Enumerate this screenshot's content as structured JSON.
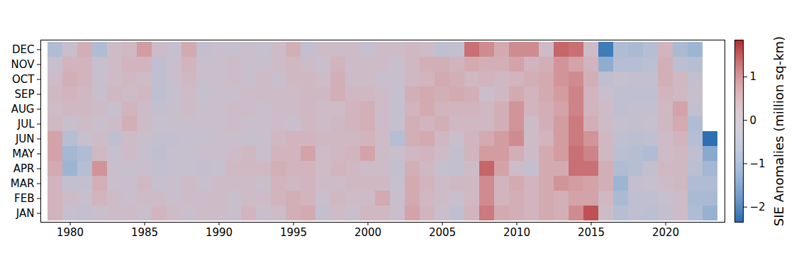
{
  "chart_data": {
    "type": "heatmap",
    "x": [
      1979,
      1980,
      1981,
      1982,
      1983,
      1984,
      1985,
      1986,
      1987,
      1988,
      1989,
      1990,
      1991,
      1992,
      1993,
      1994,
      1995,
      1996,
      1997,
      1998,
      1999,
      2000,
      2001,
      2002,
      2003,
      2004,
      2005,
      2006,
      2007,
      2008,
      2009,
      2010,
      2011,
      2012,
      2013,
      2014,
      2015,
      2016,
      2017,
      2018,
      2019,
      2020,
      2021,
      2022,
      2023
    ],
    "categories": [
      "JAN",
      "FEB",
      "MAR",
      "APR",
      "MAY",
      "JUN",
      "JUL",
      "AUG",
      "SEP",
      "OCT",
      "NOV",
      "DEC"
    ],
    "xticks": [
      1980,
      1985,
      1990,
      1995,
      2000,
      2005,
      2010,
      2015,
      2020
    ],
    "values": [
      [
        0.3,
        0.3,
        0.3,
        0.5,
        0.6,
        0.6,
        0.2,
        0.1,
        0.2,
        0.1,
        -0.1,
        -0.6
      ],
      [
        -0.1,
        0.1,
        -0.2,
        -0.9,
        -0.8,
        -0.5,
        0.0,
        0.2,
        0.3,
        0.4,
        0.3,
        0.0
      ],
      [
        -0.2,
        0.0,
        -0.2,
        -0.5,
        -0.6,
        -0.1,
        0.1,
        0.2,
        0.2,
        0.3,
        0.3,
        0.4
      ],
      [
        0.0,
        0.3,
        0.4,
        0.8,
        0.2,
        0.1,
        0.0,
        0.1,
        0.0,
        0.0,
        -0.1,
        -0.6
      ],
      [
        0.1,
        0.1,
        0.0,
        0.0,
        -0.1,
        -0.3,
        0.1,
        -0.1,
        0.2,
        0.1,
        0.1,
        0.1
      ],
      [
        0.1,
        0.0,
        0.0,
        -0.1,
        0.1,
        0.1,
        0.4,
        0.3,
        0.1,
        0.2,
        0.3,
        0.2
      ],
      [
        0.0,
        0.1,
        0.2,
        0.0,
        -0.1,
        0.0,
        0.1,
        0.1,
        0.2,
        0.1,
        0.3,
        0.7
      ],
      [
        0.3,
        0.1,
        -0.1,
        -0.2,
        -0.3,
        -0.2,
        -0.1,
        -0.2,
        -0.3,
        -0.3,
        -0.3,
        0.1
      ],
      [
        0.1,
        0.0,
        0.0,
        -0.1,
        -0.1,
        -0.2,
        0.0,
        0.0,
        -0.1,
        0.0,
        0.0,
        -0.1
      ],
      [
        0.0,
        0.1,
        0.1,
        -0.1,
        -0.1,
        -0.1,
        0.0,
        0.1,
        0.1,
        0.2,
        0.3,
        0.5
      ],
      [
        0.1,
        0.1,
        0.0,
        -0.2,
        0.0,
        -0.1,
        0.0,
        0.0,
        -0.1,
        0.0,
        0.0,
        -0.2
      ],
      [
        0.1,
        0.1,
        0.1,
        -0.1,
        0.0,
        0.0,
        0.0,
        0.0,
        0.0,
        0.0,
        0.0,
        0.0
      ],
      [
        0.0,
        0.0,
        0.1,
        0.2,
        0.1,
        0.0,
        0.1,
        0.1,
        0.0,
        0.1,
        0.1,
        -0.1
      ],
      [
        0.3,
        0.1,
        0.1,
        0.2,
        0.2,
        -0.1,
        0.0,
        0.1,
        0.1,
        0.0,
        0.0,
        0.0
      ],
      [
        0.0,
        0.1,
        0.0,
        0.2,
        0.0,
        0.0,
        0.0,
        0.0,
        0.1,
        0.1,
        0.0,
        -0.1
      ],
      [
        0.1,
        0.3,
        0.3,
        0.4,
        0.3,
        0.2,
        0.1,
        0.1,
        0.1,
        0.0,
        0.1,
        0.1
      ],
      [
        0.4,
        0.4,
        0.2,
        0.3,
        0.3,
        0.3,
        0.0,
        0.1,
        0.1,
        0.2,
        0.2,
        0.4
      ],
      [
        0.5,
        0.3,
        0.3,
        0.3,
        0.6,
        0.3,
        0.2,
        0.2,
        0.2,
        0.2,
        0.1,
        -0.2
      ],
      [
        -0.2,
        0.0,
        0.1,
        0.1,
        0.1,
        0.2,
        0.1,
        0.1,
        0.2,
        0.1,
        0.0,
        0.1
      ],
      [
        0.1,
        0.2,
        0.1,
        0.3,
        0.2,
        0.2,
        0.2,
        0.1,
        0.4,
        0.4,
        0.3,
        0.1
      ],
      [
        0.0,
        0.1,
        0.2,
        0.2,
        0.3,
        0.2,
        0.3,
        0.3,
        0.2,
        0.1,
        0.1,
        0.1
      ],
      [
        0.2,
        0.1,
        0.2,
        0.1,
        0.6,
        0.3,
        0.4,
        0.4,
        0.2,
        0.1,
        0.1,
        -0.1
      ],
      [
        0.2,
        0.5,
        0.2,
        0.1,
        0.1,
        0.1,
        0.1,
        0.1,
        0.1,
        0.0,
        0.1,
        0.1
      ],
      [
        0.0,
        0.0,
        -0.1,
        -0.2,
        0.0,
        -0.5,
        -0.1,
        -0.1,
        -0.1,
        0.0,
        0.0,
        0.1
      ],
      [
        0.6,
        0.5,
        0.5,
        0.4,
        0.2,
        0.4,
        0.4,
        0.3,
        0.4,
        0.2,
        0.2,
        0.2
      ],
      [
        0.3,
        0.2,
        0.3,
        0.2,
        0.3,
        0.5,
        0.3,
        0.5,
        0.5,
        0.3,
        0.4,
        0.1
      ],
      [
        0.0,
        0.1,
        0.1,
        -0.1,
        0.1,
        0.2,
        0.4,
        0.3,
        0.4,
        0.5,
        0.4,
        -0.3
      ],
      [
        -0.3,
        0.0,
        0.2,
        -0.2,
        -0.2,
        0.0,
        0.2,
        0.3,
        0.5,
        0.4,
        0.3,
        -0.2
      ],
      [
        0.3,
        0.2,
        0.2,
        0.1,
        0.3,
        0.3,
        0.2,
        0.3,
        0.4,
        0.2,
        0.5,
        1.2
      ],
      [
        1.1,
        0.9,
        0.9,
        1.3,
        0.7,
        0.5,
        0.2,
        0.2,
        0.0,
        0.3,
        0.4,
        0.9
      ],
      [
        0.5,
        0.3,
        0.3,
        0.6,
        0.7,
        0.7,
        0.4,
        0.4,
        0.2,
        0.2,
        0.4,
        0.5
      ],
      [
        0.4,
        0.4,
        0.5,
        0.1,
        0.4,
        0.9,
        0.8,
        0.8,
        0.5,
        0.3,
        0.6,
        0.9
      ],
      [
        0.3,
        0.3,
        0.3,
        -0.2,
        0.1,
        0.1,
        0.1,
        0.3,
        0.3,
        0.4,
        0.3,
        0.9
      ],
      [
        0.5,
        0.5,
        0.5,
        0.5,
        0.5,
        0.3,
        0.4,
        0.4,
        0.5,
        0.5,
        0.4,
        0.1
      ],
      [
        0.4,
        0.4,
        0.8,
        0.5,
        0.7,
        0.7,
        0.7,
        0.6,
        0.7,
        0.8,
        0.8,
        1.3
      ],
      [
        0.9,
        0.6,
        0.7,
        1.2,
        1.2,
        1.1,
        1.1,
        1.0,
        1.0,
        0.9,
        0.6,
        1.2
      ],
      [
        1.5,
        0.6,
        0.6,
        1.2,
        1.0,
        0.8,
        0.4,
        0.3,
        0.3,
        0.4,
        0.3,
        0.1
      ],
      [
        0.1,
        0.2,
        0.4,
        0.4,
        0.2,
        0.2,
        0.1,
        0.1,
        0.0,
        -0.3,
        -1.1,
        -2.1
      ],
      [
        -0.5,
        -0.7,
        -0.9,
        -0.6,
        -0.4,
        -0.3,
        -0.1,
        -0.3,
        -0.3,
        -0.1,
        -0.5,
        -0.6
      ],
      [
        -0.3,
        -0.3,
        -0.2,
        -0.5,
        -0.5,
        -0.4,
        -0.2,
        -0.2,
        -0.3,
        -0.2,
        -0.5,
        -0.7
      ],
      [
        -0.4,
        -0.3,
        -0.1,
        -0.2,
        -0.6,
        -0.3,
        -0.1,
        -0.2,
        -0.3,
        -0.2,
        -0.4,
        -0.5
      ],
      [
        -0.2,
        -0.1,
        0.1,
        0.2,
        0.1,
        0.1,
        0.2,
        0.2,
        0.3,
        0.4,
        0.4,
        0.3
      ],
      [
        0.1,
        0.1,
        0.2,
        0.2,
        0.2,
        0.3,
        0.5,
        0.6,
        0.2,
        0.2,
        -0.4,
        -0.7
      ],
      [
        -0.6,
        -0.7,
        -0.6,
        -0.4,
        -0.3,
        -0.5,
        -0.6,
        -0.2,
        0.0,
        -0.2,
        -0.5,
        -0.9
      ],
      [
        -1.0,
        -0.7,
        -0.6,
        -0.8,
        -1.2,
        -2.3,
        null,
        null,
        null,
        null,
        null,
        null
      ]
    ],
    "colorbar": {
      "label": "SIE Anomalies (million sq-km)",
      "range": [
        -2.35,
        1.85
      ],
      "ticks": [
        {
          "value": -2,
          "label": "−2"
        },
        {
          "value": -1,
          "label": "−1"
        },
        0,
        1
      ]
    }
  }
}
